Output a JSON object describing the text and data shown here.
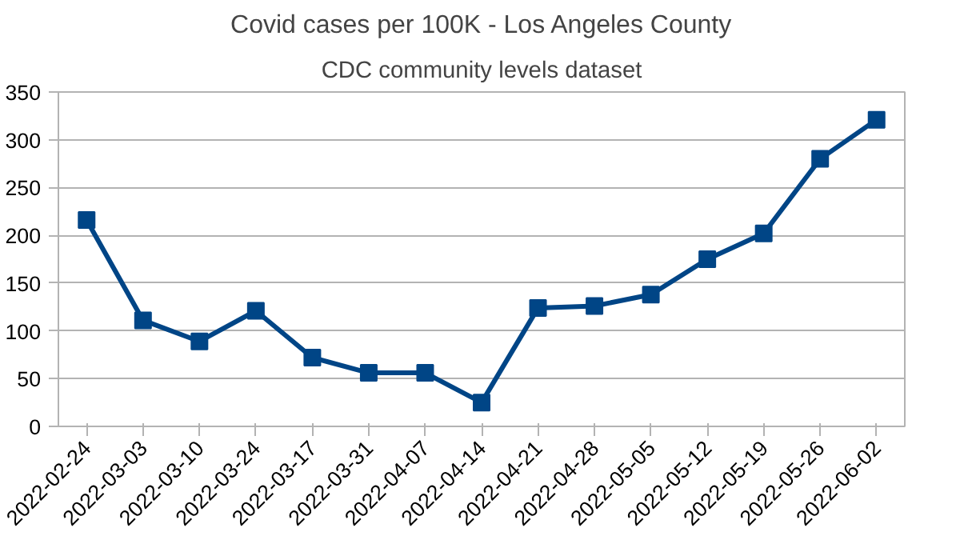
{
  "chart_data": {
    "type": "line",
    "title": "Covid cases per 100K - Los Angeles County",
    "subtitle": "CDC community levels dataset",
    "categories": [
      "2022-02-24",
      "2022-03-03",
      "2022-03-10",
      "2022-03-24",
      "2022-03-17",
      "2022-03-31",
      "2022-04-07",
      "2022-04-14",
      "2022-04-21",
      "2022-04-28",
      "2022-05-05",
      "2022-05-12",
      "2022-05-19",
      "2022-05-26",
      "2022-06-02"
    ],
    "series": [
      {
        "color": "#004586",
        "values": [
          216,
          111,
          89,
          121,
          72,
          56,
          56,
          25,
          124,
          126,
          138,
          175,
          202,
          280,
          321
        ]
      }
    ],
    "ylim": [
      0,
      350
    ],
    "yticks": [
      0,
      50,
      100,
      150,
      200,
      250,
      300,
      350
    ],
    "grid": "y",
    "marker": "square",
    "line_style": "solid"
  }
}
